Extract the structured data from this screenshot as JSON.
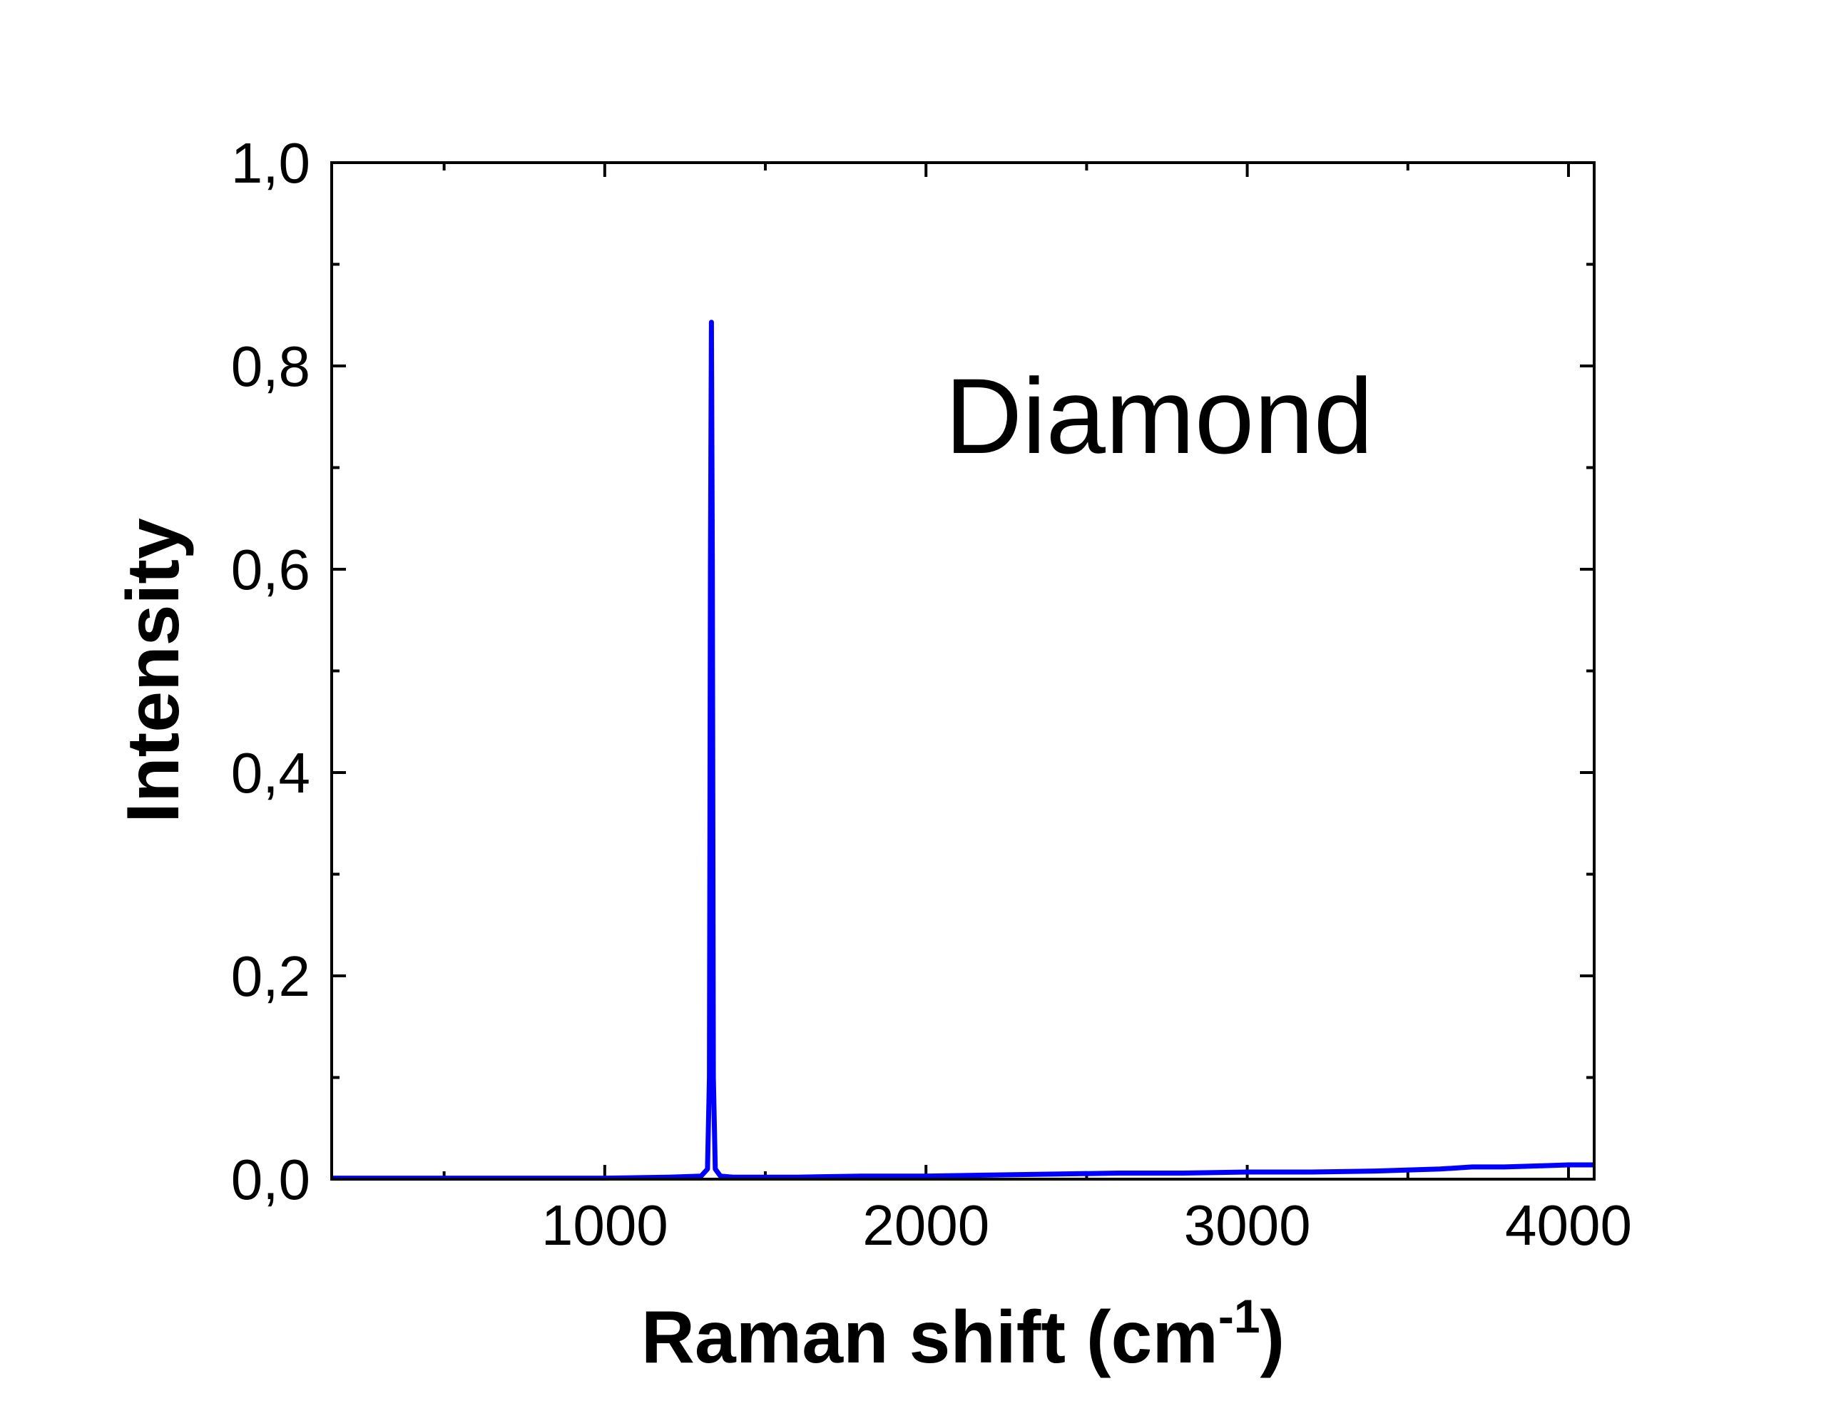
{
  "chart_data": {
    "type": "line",
    "title": "",
    "annotation": "Diamond",
    "xlabel": "Raman shift (cm",
    "xlabel_superscript": "-1",
    "xlabel_suffix": ")",
    "ylabel": "Intensity",
    "xlim": [
      150,
      4080
    ],
    "ylim": [
      0.0,
      1.0
    ],
    "x_ticks": [
      {
        "value": 1000,
        "label": "1000"
      },
      {
        "value": 2000,
        "label": "2000"
      },
      {
        "value": 3000,
        "label": "3000"
      },
      {
        "value": 4000,
        "label": "4000"
      }
    ],
    "y_ticks": [
      {
        "value": 0.0,
        "label": "0,0"
      },
      {
        "value": 0.2,
        "label": "0,2"
      },
      {
        "value": 0.4,
        "label": "0,4"
      },
      {
        "value": 0.6,
        "label": "0,6"
      },
      {
        "value": 0.8,
        "label": "0,8"
      },
      {
        "value": 1.0,
        "label": "1,0"
      }
    ],
    "grid": false,
    "series": [
      {
        "color": "#0000ff",
        "x": [
          150,
          400,
          700,
          1000,
          1200,
          1300,
          1320,
          1326,
          1329,
          1332,
          1335,
          1338,
          1344,
          1360,
          1400,
          1600,
          1800,
          2000,
          2200,
          2400,
          2600,
          2800,
          3000,
          3200,
          3400,
          3600,
          3700,
          3800,
          3900,
          4000,
          4080
        ],
        "y": [
          0.001,
          0.001,
          0.001,
          0.001,
          0.002,
          0.003,
          0.01,
          0.1,
          0.6,
          0.843,
          0.6,
          0.1,
          0.01,
          0.003,
          0.002,
          0.002,
          0.003,
          0.003,
          0.004,
          0.005,
          0.006,
          0.006,
          0.007,
          0.007,
          0.008,
          0.01,
          0.012,
          0.012,
          0.013,
          0.014,
          0.014
        ]
      }
    ]
  }
}
